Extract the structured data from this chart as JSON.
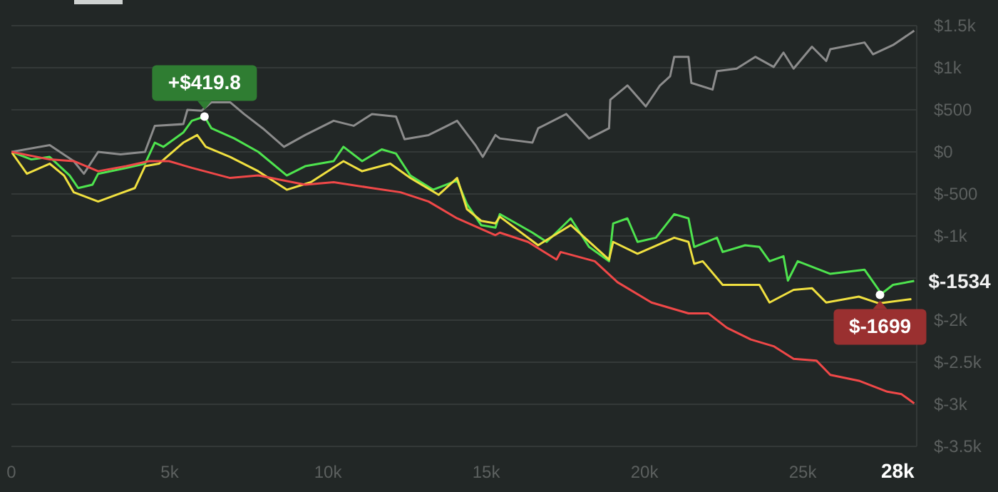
{
  "chart_data": {
    "type": "line",
    "xlim": [
      0,
      28600
    ],
    "xticks": [
      0,
      {
        "value": 5000,
        "label": "5k"
      },
      {
        "value": 10000,
        "label": "10k"
      },
      {
        "value": 15000,
        "label": "15k"
      },
      {
        "value": 20000,
        "label": "20k"
      },
      {
        "value": 25000,
        "label": "25k"
      },
      {
        "value": 28000,
        "label": "28k"
      }
    ],
    "ylim": [
      -3500,
      1500
    ],
    "yticks": [
      {
        "value": 1500,
        "label": "$1.5k"
      },
      {
        "value": 1000,
        "label": "$1k"
      },
      {
        "value": 500,
        "label": "$500"
      },
      {
        "value": 0,
        "label": "$0"
      },
      {
        "value": -500,
        "label": "$-500"
      },
      {
        "value": -1000,
        "label": "$-1k"
      },
      {
        "value": -1500,
        "label": null
      },
      {
        "value": -2000,
        "label": "$-2k"
      },
      {
        "value": -2500,
        "label": "$-2.5k"
      },
      {
        "value": -3000,
        "label": "$-3k"
      },
      {
        "value": -3500,
        "label": "$-3.5k"
      }
    ],
    "grid": "y",
    "marker": "none",
    "line_style": "solid",
    "series": [
      {
        "color": "#8c8c8c",
        "x": [
          0,
          1210,
          1970,
          2290,
          2740,
          3450,
          4220,
          4530,
          5430,
          5560,
          6010,
          6320,
          6910,
          7350,
          7940,
          8610,
          9280,
          10180,
          10810,
          11390,
          12150,
          12420,
          13180,
          13770,
          14080,
          14660,
          14890,
          15290,
          15430,
          16460,
          16640,
          17530,
          18250,
          18880,
          18920,
          19460,
          20040,
          20490,
          20810,
          20940,
          21390,
          21480,
          22150,
          22290,
          22910,
          23500,
          24080,
          24390,
          24710,
          25290,
          25740,
          25870,
          26950,
          27220,
          27850,
          28520
        ],
        "values": [
          0,
          80,
          -110,
          -260,
          0,
          -30,
          0,
          310,
          330,
          500,
          490,
          590,
          590,
          450,
          280,
          60,
          200,
          370,
          310,
          450,
          420,
          150,
          200,
          310,
          370,
          80,
          -60,
          200,
          160,
          110,
          280,
          450,
          160,
          280,
          620,
          790,
          540,
          790,
          900,
          1130,
          1130,
          820,
          740,
          960,
          990,
          1130,
          1010,
          1180,
          990,
          1250,
          1080,
          1220,
          1300,
          1160,
          1270,
          1440
        ]
      },
      {
        "color": "#4ee44e",
        "x": [
          0,
          630,
          1210,
          1840,
          2110,
          2560,
          2740,
          3630,
          4220,
          4530,
          4800,
          5430,
          5700,
          6100,
          6320,
          7040,
          7800,
          8700,
          9280,
          10180,
          10490,
          11080,
          11700,
          12150,
          12600,
          13320,
          14080,
          14390,
          14840,
          15290,
          15430,
          16460,
          16910,
          17670,
          18250,
          18880,
          19010,
          19460,
          19780,
          20360,
          20940,
          21390,
          21570,
          22290,
          22470,
          23180,
          23630,
          23950,
          24390,
          24530,
          24840,
          25870,
          26950,
          27400,
          27440,
          27850,
          28520
        ],
        "values": [
          0,
          -90,
          -60,
          -280,
          -430,
          -390,
          -260,
          -190,
          -140,
          110,
          60,
          230,
          370,
          419.8,
          280,
          160,
          0,
          -280,
          -170,
          -110,
          60,
          -110,
          30,
          -20,
          -280,
          -450,
          -340,
          -620,
          -870,
          -900,
          -740,
          -960,
          -1070,
          -790,
          -1130,
          -1300,
          -850,
          -790,
          -1070,
          -1020,
          -740,
          -790,
          -1130,
          -1020,
          -1190,
          -1110,
          -1130,
          -1300,
          -1240,
          -1530,
          -1300,
          -1450,
          -1400,
          -1640,
          -1699,
          -1580,
          -1534
        ]
      },
      {
        "color": "#f0e040",
        "x": [
          0,
          490,
          1210,
          1660,
          1970,
          2740,
          3320,
          3900,
          4220,
          4660,
          5430,
          5870,
          6140,
          6910,
          7800,
          8700,
          9460,
          10490,
          11080,
          11970,
          12600,
          13500,
          14080,
          14390,
          14840,
          15290,
          15430,
          16640,
          17670,
          18880,
          19010,
          19780,
          20940,
          21390,
          21570,
          21840,
          22470,
          23630,
          23950,
          24710,
          25290,
          25740,
          26770,
          27400,
          28430
        ],
        "values": [
          0,
          -260,
          -140,
          -280,
          -480,
          -590,
          -510,
          -430,
          -170,
          -140,
          110,
          200,
          60,
          -60,
          -230,
          -450,
          -360,
          -110,
          -230,
          -140,
          -310,
          -510,
          -310,
          -680,
          -820,
          -850,
          -770,
          -1110,
          -870,
          -1280,
          -1070,
          -1210,
          -1020,
          -1070,
          -1330,
          -1300,
          -1580,
          -1580,
          -1790,
          -1640,
          -1620,
          -1790,
          -1720,
          -1800,
          -1750
        ]
      },
      {
        "color": "#f04848",
        "x": [
          0,
          1210,
          1970,
          2740,
          3630,
          4350,
          4980,
          5700,
          6910,
          7800,
          9280,
          10180,
          11390,
          12290,
          13180,
          14080,
          15290,
          15430,
          16320,
          17220,
          17350,
          18430,
          19150,
          20220,
          21390,
          22020,
          22600,
          23360,
          24080,
          24710,
          25430,
          25870,
          26770,
          27670,
          28120,
          28520
        ],
        "values": [
          0,
          -90,
          -110,
          -230,
          -170,
          -110,
          -110,
          -190,
          -310,
          -280,
          -390,
          -360,
          -430,
          -480,
          -590,
          -790,
          -990,
          -960,
          -1070,
          -1280,
          -1190,
          -1300,
          -1550,
          -1790,
          -1920,
          -1920,
          -2090,
          -2230,
          -2310,
          -2460,
          -2480,
          -2650,
          -2720,
          -2850,
          -2880,
          -2990
        ]
      }
    ],
    "annotations": [
      {
        "text": "+$419.8",
        "x": 6100,
        "y": 419.8
      },
      {
        "text": "$-1699",
        "x": 27440,
        "y": -1699
      },
      {
        "text": "$-1534",
        "x": 28520,
        "y": -1534
      }
    ]
  }
}
